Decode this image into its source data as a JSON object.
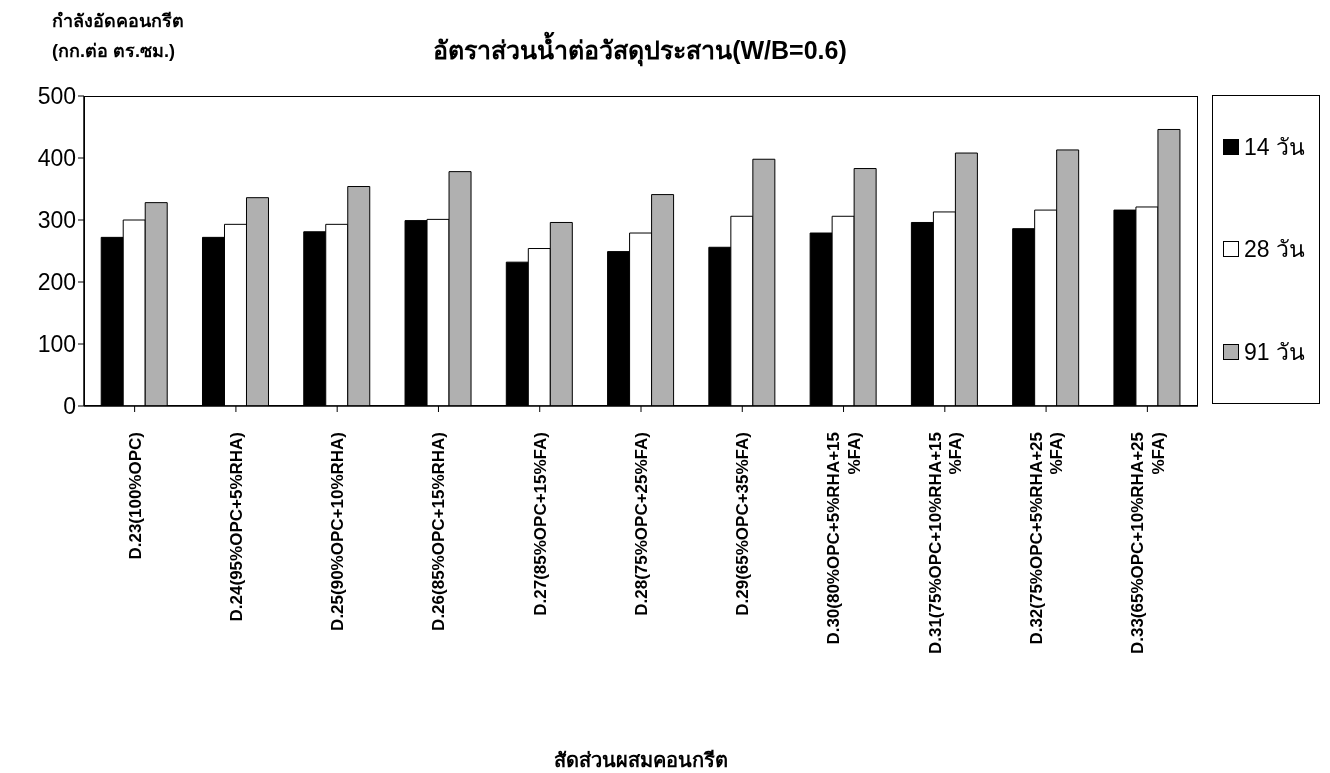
{
  "chart_data": {
    "type": "bar",
    "title": "อัตราส่วนน้ำต่อวัสดุประสาน(W/B=0.6)",
    "ylabel": "กำลังอัดคอนกรีต\n(กก.ต่อ ตร.ซม.)",
    "xlabel": "สัดส่วนผสมคอนกรีต",
    "categories": [
      "D.23(100%OPC)",
      "D.24(95%OPC+5%RHA)",
      "D.25(90%OPC+10%RHA)",
      "D.26(85%OPC+15%RHA)",
      "D.27(85%OPC+15%FA)",
      "D.28(75%OPC+25%FA)",
      "D.29(65%OPC+35%FA)",
      "D.30(80%OPC+5%RHA+15%FA)",
      "D.31(75%OPC+10%RHA+15%FA)",
      "D.32(75%OPC+5%RHA+25%FA)",
      "D.33(65%OPC+10%RHA+25%FA)"
    ],
    "series": [
      {
        "name": "14 วัน",
        "color": "#000000",
        "values": [
          272,
          272,
          281,
          299,
          232,
          249,
          256,
          279,
          296,
          286,
          316
        ]
      },
      {
        "name": "28 วัน",
        "color": "#ffffff",
        "values": [
          300,
          293,
          293,
          301,
          254,
          279,
          306,
          306,
          313,
          316,
          321
        ]
      },
      {
        "name": "91 วัน",
        "color": "#b0b0b0",
        "values": [
          328,
          336,
          354,
          378,
          296,
          341,
          398,
          383,
          408,
          413,
          446
        ]
      }
    ],
    "ylim": [
      0,
      500
    ],
    "yticks": [
      0,
      100,
      200,
      300,
      400,
      500
    ],
    "grid": false,
    "legend": "right"
  }
}
